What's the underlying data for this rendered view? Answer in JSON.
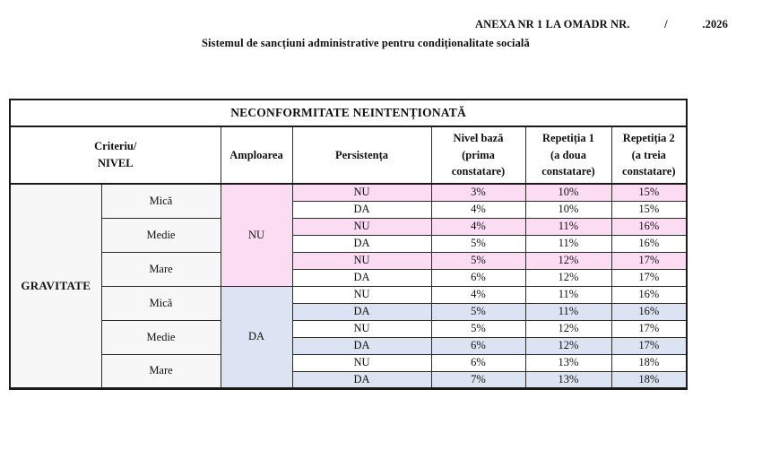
{
  "page": {
    "annex": {
      "label": "ANEXA NR 1 LA OMADR NR.",
      "slash": "/",
      "year": ".2026"
    },
    "subtitle": "Sistemul de sancțiuni administrative pentru condiționalitate socială"
  },
  "table": {
    "title": "NECONFORMITATE NEINTENȚIONATĂ",
    "headers": {
      "criteriu": "Criteriu/\nNIVEL",
      "amploarea": "Amploarea",
      "persistenta": "Persistența",
      "nivel_baza": "Nivel bază\n(prima\nconstatare)",
      "repetitia1": "Repetiția 1\n(a doua\nconstatare)",
      "repetitia2": "Repetiția 2\n(a treia\nconstatare)"
    },
    "row_label": "GRAVITATE",
    "colors": {
      "pink": "#FBDCF2",
      "blue": "#DCE3F2",
      "label_bg": "#F7F7F7"
    },
    "groups": [
      {
        "amploarea": "NU",
        "shade": "pink",
        "levels": [
          {
            "nivel": "Mică",
            "rows": [
              {
                "persistenta": "NU",
                "values": [
                  "3%",
                  "10%",
                  "15%"
                ],
                "shaded": true
              },
              {
                "persistenta": "DA",
                "values": [
                  "4%",
                  "10%",
                  "15%"
                ],
                "shaded": false
              }
            ]
          },
          {
            "nivel": "Medie",
            "rows": [
              {
                "persistenta": "NU",
                "values": [
                  "4%",
                  "11%",
                  "16%"
                ],
                "shaded": true
              },
              {
                "persistenta": "DA",
                "values": [
                  "5%",
                  "11%",
                  "16%"
                ],
                "shaded": false
              }
            ]
          },
          {
            "nivel": "Mare",
            "rows": [
              {
                "persistenta": "NU",
                "values": [
                  "5%",
                  "12%",
                  "17%"
                ],
                "shaded": true
              },
              {
                "persistenta": "DA",
                "values": [
                  "6%",
                  "12%",
                  "17%"
                ],
                "shaded": false
              }
            ]
          }
        ]
      },
      {
        "amploarea": "DA",
        "shade": "blue",
        "levels": [
          {
            "nivel": "Mică",
            "rows": [
              {
                "persistenta": "NU",
                "values": [
                  "4%",
                  "11%",
                  "16%"
                ],
                "shaded": false
              },
              {
                "persistenta": "DA",
                "values": [
                  "5%",
                  "11%",
                  "16%"
                ],
                "shaded": true
              }
            ]
          },
          {
            "nivel": "Medie",
            "rows": [
              {
                "persistenta": "NU",
                "values": [
                  "5%",
                  "12%",
                  "17%"
                ],
                "shaded": false
              },
              {
                "persistenta": "DA",
                "values": [
                  "6%",
                  "12%",
                  "17%"
                ],
                "shaded": true
              }
            ]
          },
          {
            "nivel": "Mare",
            "rows": [
              {
                "persistenta": "NU",
                "values": [
                  "6%",
                  "13%",
                  "18%"
                ],
                "shaded": false
              },
              {
                "persistenta": "DA",
                "values": [
                  "7%",
                  "13%",
                  "18%"
                ],
                "shaded": true
              }
            ]
          }
        ]
      }
    ]
  }
}
